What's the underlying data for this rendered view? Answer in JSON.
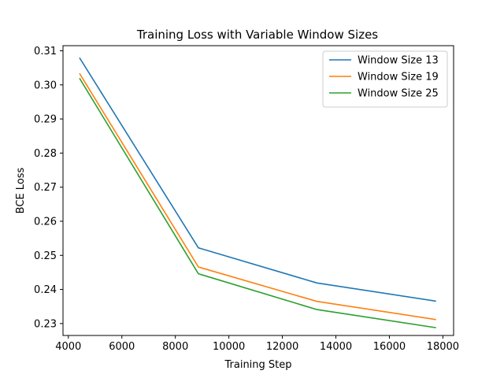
{
  "chart_data": {
    "type": "line",
    "title": "Training Loss with Variable Window Sizes",
    "xlabel": "Training Step",
    "ylabel": "BCE Loss",
    "xlim": [
      3800,
      18400
    ],
    "ylim": [
      0.2265,
      0.3115
    ],
    "xticks": [
      4000,
      6000,
      8000,
      10000,
      12000,
      14000,
      16000,
      18000
    ],
    "yticks": [
      0.23,
      0.24,
      0.25,
      0.26,
      0.27,
      0.28,
      0.29,
      0.3,
      0.31
    ],
    "xtick_labels": [
      "4000",
      "6000",
      "8000",
      "10000",
      "12000",
      "14000",
      "16000",
      "18000"
    ],
    "ytick_labels": [
      "0.23",
      "0.24",
      "0.25",
      "0.26",
      "0.27",
      "0.28",
      "0.29",
      "0.30",
      "0.31"
    ],
    "grid": false,
    "legend_position": "top-right",
    "series": [
      {
        "name": "Window Size 13",
        "color": "#1f77b4",
        "x": [
          4430,
          8860,
          13290,
          17720
        ],
        "values": [
          0.3078,
          0.2522,
          0.2419,
          0.2366
        ]
      },
      {
        "name": "Window Size 19",
        "color": "#ff7f0e",
        "x": [
          4430,
          8860,
          13290,
          17720
        ],
        "values": [
          0.3032,
          0.2466,
          0.2365,
          0.2312
        ]
      },
      {
        "name": "Window Size 25",
        "color": "#2ca02c",
        "x": [
          4430,
          8860,
          13290,
          17720
        ],
        "values": [
          0.3018,
          0.2446,
          0.2341,
          0.2288
        ]
      }
    ]
  }
}
